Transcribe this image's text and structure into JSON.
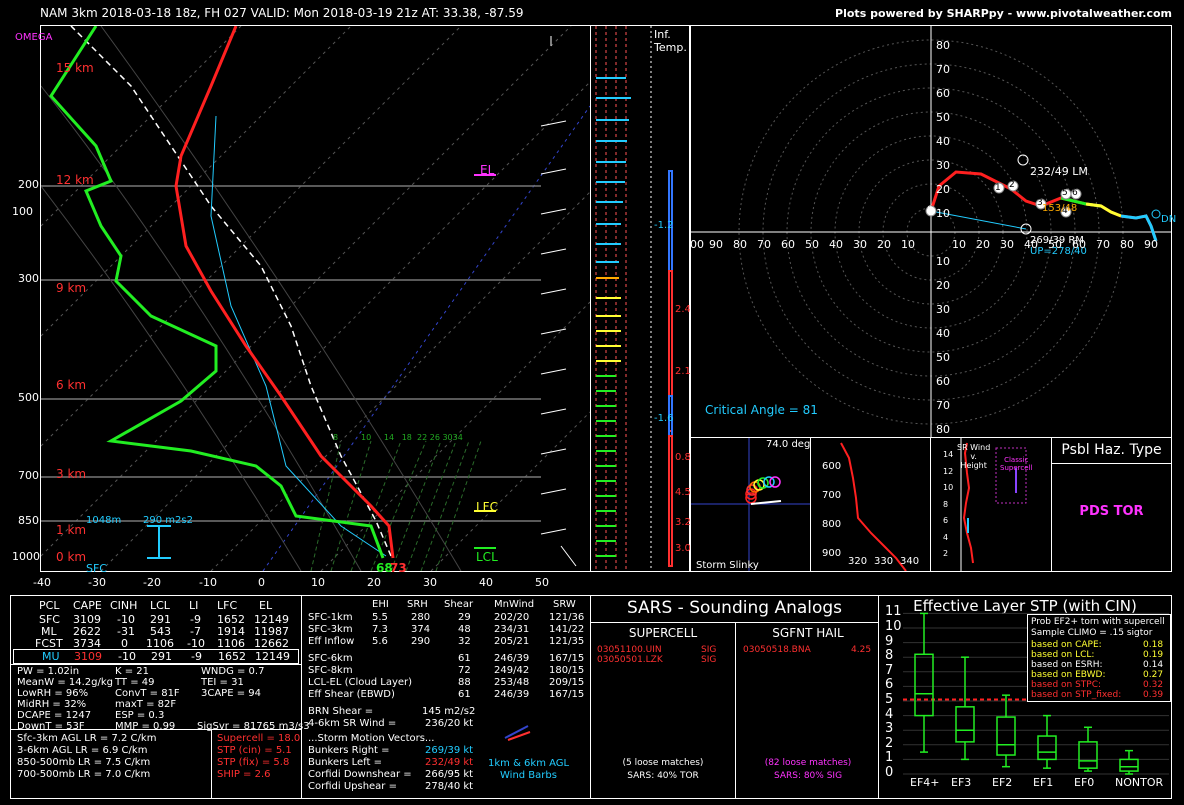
{
  "header": {
    "left": "NAM 3km 2018-03-18 18z, FH 027   VALID: Mon 2018-03-19 21z   AT: 33.38, -87.59",
    "right": "Plots powered by SHARPpy - www.pivotalweather.com"
  },
  "skewt": {
    "omega_label": "OMEGA",
    "pressure_labels": [
      "100",
      "200",
      "300",
      "500",
      "700",
      "850",
      "1000"
    ],
    "height_labels": [
      "15 km",
      "12 km",
      "9 km",
      "6 km",
      "3 km",
      "1 km",
      "0 km"
    ],
    "temp_labels": [
      "-40",
      "-30",
      "-20",
      "-10",
      "0",
      "10",
      "20",
      "30",
      "40",
      "50"
    ],
    "el_label": "EL",
    "lfc_label": "LFC",
    "lcl_label": "LCL",
    "sfc_label": "SFC",
    "eff_inflow_bottom": "1048m",
    "eff_inflow_srh": "290 m2s2",
    "sfc_td": "68",
    "sfc_t": "73",
    "mixing_ratio_labels": [
      "8",
      "10",
      "14",
      "18",
      "22",
      "26",
      "30",
      "34"
    ]
  },
  "theta_panel": {
    "title_line1": "Inf.",
    "title_line2": "Temp.",
    "values": [
      "-1.2",
      "2.4",
      "2.1",
      "-1.6",
      "0.8",
      "4.5",
      "3.2",
      "3.0"
    ]
  },
  "hodograph": {
    "rings_right": [
      "80",
      "70",
      "60",
      "50",
      "40",
      "30",
      "20",
      "10",
      "0",
      "10",
      "20",
      "30",
      "40",
      "50",
      "60",
      "70",
      "80"
    ],
    "x_labels": [
      "00",
      "90",
      "80",
      "70",
      "60",
      "50",
      "40",
      "30",
      "20",
      "10",
      "10",
      "20",
      "30",
      "40",
      "50",
      "60",
      "70",
      "80",
      "90"
    ],
    "markers": [
      "0",
      "1",
      "2",
      "3",
      "4",
      "5",
      "6"
    ],
    "lm_label": "232/49 LM",
    "rm_label": "269/39 RM",
    "up_label": "UP=278/40",
    "dn_label": "DN",
    "critical_angle": "Critical Angle = 81",
    "eff_label": "153/48"
  },
  "storm_slinky": {
    "label": "Storm Slinky",
    "angle": "74.0 deg"
  },
  "theta_e": {
    "y_labels": [
      "600",
      "700",
      "800",
      "900"
    ],
    "x_labels": [
      "320",
      "330",
      "340"
    ]
  },
  "sr_wind": {
    "title_line1": "SR Wind",
    "title_line2": "v.",
    "title_line3": "Height",
    "classic_line1": "Classic",
    "classic_line2": "Supercell",
    "y_labels": [
      "14",
      "12",
      "10",
      "8",
      "6",
      "4",
      "2"
    ]
  },
  "hazard": {
    "title": "Psbl Haz. Type",
    "value": "PDS TOR"
  },
  "thermo": {
    "headers": [
      "PCL",
      "CAPE",
      "CINH",
      "LCL",
      "LI",
      "LFC",
      "EL"
    ],
    "rows": [
      [
        "SFC",
        "3109",
        "-10",
        "291",
        "-9",
        "1652",
        "12149"
      ],
      [
        "ML",
        "2622",
        "-31",
        "543",
        "-7",
        "1914",
        "11987"
      ],
      [
        "FCST",
        "3734",
        "0",
        "1106",
        "-10",
        "1106",
        "12662"
      ],
      [
        "MU",
        "3109",
        "-10",
        "291",
        "-9",
        "1652",
        "12149"
      ]
    ],
    "indices": [
      [
        "PW = 1.02in",
        "K = 21",
        "WNDG = 0.7"
      ],
      [
        "MeanW = 14.2g/kg",
        "TT = 49",
        "TEI = 31"
      ],
      [
        "LowRH = 96%",
        "ConvT = 81F",
        "3CAPE = 94"
      ],
      [
        "MidRH = 32%",
        "maxT = 82F",
        ""
      ],
      [
        "DCAPE = 1247",
        "ESP = 0.3",
        ""
      ],
      [
        "DownT = 53F",
        "MMP = 0.99",
        "SigSvr = 81765 m3/s3"
      ]
    ],
    "lapse": [
      "Sfc-3km AGL LR = 7.2 C/km",
      "3-6km AGL LR = 6.9 C/km",
      "850-500mb LR = 7.5 C/km",
      "700-500mb LR = 7.0 C/km"
    ],
    "composites": [
      "Supercell = 18.0",
      "STP (cin) = 5.1",
      "STP (fix) = 5.8",
      "SHIP = 2.6"
    ]
  },
  "kinematics": {
    "headers": [
      "EHI",
      "SRH",
      "Shear",
      "MnWind",
      "SRW"
    ],
    "rows": [
      [
        "SFC-1km",
        "5.5",
        "280",
        "29",
        "202/20",
        "121/36"
      ],
      [
        "SFC-3km",
        "7.3",
        "374",
        "48",
        "234/31",
        "141/22"
      ],
      [
        "Eff Inflow",
        "5.6",
        "290",
        "32",
        "205/21",
        "121/35"
      ],
      [
        "SFC-6km",
        "",
        "",
        "61",
        "246/39",
        "167/15"
      ],
      [
        "SFC-8km",
        "",
        "",
        "72",
        "249/42",
        "180/15"
      ],
      [
        "LCL-EL (Cloud Layer)",
        "",
        "",
        "88",
        "253/48",
        "209/15"
      ],
      [
        "Eff Shear (EBWD)",
        "",
        "",
        "61",
        "246/39",
        "167/15"
      ]
    ],
    "brn_shear_label": "BRN Shear =",
    "brn_shear": "145 m2/s2",
    "sr_wind_label": "4-6km SR Wind =",
    "sr_wind": "236/20 kt",
    "storm_motion_title": "...Storm Motion Vectors...",
    "motions": [
      [
        "Bunkers Right =",
        "269/39 kt"
      ],
      [
        "Bunkers Left =",
        "232/49 kt"
      ],
      [
        "Corfidi Downshear =",
        "266/95 kt"
      ],
      [
        "Corfidi Upshear =",
        "278/40 kt"
      ]
    ],
    "barb_note_line1": "1km & 6km AGL",
    "barb_note_line2": "Wind Barbs"
  },
  "sars": {
    "title": "SARS - Sounding Analogs",
    "supercell_title": "SUPERCELL",
    "hail_title": "SGFNT HAIL",
    "supercell_matches": [
      [
        "03051100.UIN",
        "SIG"
      ],
      [
        "03050501.LZK",
        "SIG"
      ]
    ],
    "hail_matches": [
      [
        "03050518.BNA",
        "4.25"
      ]
    ],
    "supercell_loose": "(5 loose matches)",
    "supercell_summary": "SARS: 40% TOR",
    "hail_loose": "(82 loose matches)",
    "hail_summary": "SARS: 80% SIG"
  },
  "stp": {
    "title": "Effective Layer STP (with CIN)",
    "prob_title": "Prob EF2+ torn with supercell",
    "clim_title": "Sample CLIMO = .15 sigtor",
    "probs": [
      [
        "based on CAPE:",
        "0.18"
      ],
      [
        "based on LCL:",
        "0.19"
      ],
      [
        "based on ESRH:",
        "0.14"
      ],
      [
        "based on EBWD:",
        "0.27"
      ],
      [
        "based on STPC:",
        "0.32"
      ],
      [
        "based on STP_fixed:",
        "0.39"
      ]
    ],
    "y_labels": [
      "11",
      "10",
      "9",
      "8",
      "7",
      "6",
      "5",
      "4",
      "3",
      "2",
      "1",
      "0"
    ],
    "categories": [
      "EF4+",
      "EF3",
      "EF2",
      "EF1",
      "EF0",
      "NONTOR"
    ],
    "stp_value": 5.1
  },
  "colors": {
    "temp": "#ff2020",
    "dewpoint": "#22ee22",
    "parcel": "#ffffff",
    "cyan": "#22ccff",
    "magenta": "#ff33ff",
    "yellow": "#ffff33",
    "orange": "#ffaa00"
  }
}
